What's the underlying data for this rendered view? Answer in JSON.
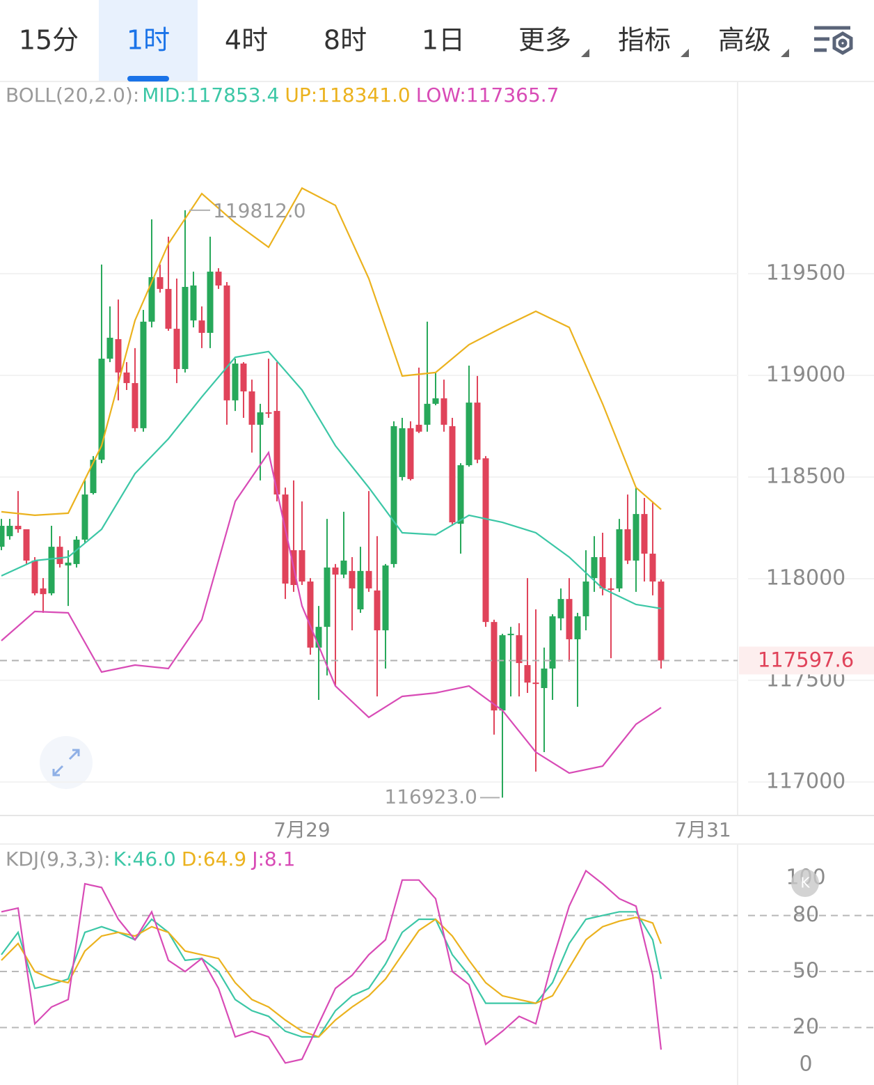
{
  "tabs": {
    "items": [
      "15分",
      "1时",
      "4时",
      "8时",
      "1日",
      "更多",
      "指标",
      "高级"
    ],
    "selected": 1
  },
  "badge": "K",
  "chart_data": [
    {
      "type": "candlestick",
      "indicator": "BOLL(20,2.0):",
      "up_color": "#27a85a",
      "down_color": "#e0435a",
      "open": [
        118157,
        118209,
        118260,
        118243,
        118089,
        117952,
        117928,
        118157,
        118065,
        118072,
        118192,
        118421,
        118585,
        119082,
        119178,
        119014,
        118962,
        118740,
        119264,
        119483,
        119425,
        119229,
        119031,
        119270,
        119270,
        119209,
        119510,
        119442,
        118877,
        119058,
        118921,
        118757,
        118818,
        118825,
        118414,
        118140,
        118140,
        117986,
        117661,
        117763,
        118055,
        118020,
        118038,
        117849,
        118038,
        117942,
        117746,
        118072,
        118500,
        118740,
        118757,
        118757,
        118860,
        118887,
        118750,
        118270,
        118558,
        118866,
        118592,
        117787,
        117352,
        117722,
        117722,
        117575,
        117489,
        117462,
        117558,
        117805,
        117900,
        117702,
        117815,
        118003,
        118106,
        117952,
        117952,
        118243,
        118089,
        118318,
        118123,
        117986
      ],
      "high": [
        118294,
        118294,
        118431,
        118243,
        118106,
        118003,
        118260,
        118209,
        118140,
        118209,
        118483,
        118603,
        119545,
        119339,
        119373,
        119065,
        119134,
        119322,
        119767,
        119545,
        119682,
        119476,
        119812,
        119510,
        119339,
        119682,
        119527,
        119459,
        119082,
        119065,
        118979,
        118860,
        119082,
        119065,
        118448,
        118483,
        118380,
        118003,
        117866,
        118294,
        118072,
        118329,
        118106,
        118157,
        118431,
        118209,
        118072,
        118774,
        118791,
        118774,
        119038,
        119264,
        119014,
        118979,
        118791,
        118568,
        119048,
        118997,
        118603,
        117798,
        117729,
        117763,
        117781,
        118003,
        117849,
        117661,
        117825,
        117952,
        118003,
        117832,
        118140,
        118209,
        118226,
        118003,
        118294,
        118414,
        118448,
        118397,
        118380,
        117996
      ],
      "low": [
        118140,
        118192,
        118226,
        118072,
        117918,
        117832,
        117918,
        118055,
        117866,
        118055,
        118175,
        118414,
        118568,
        119065,
        118877,
        118928,
        118723,
        118723,
        119236,
        119407,
        119219,
        118962,
        119014,
        119236,
        119134,
        119134,
        119425,
        118757,
        118825,
        118791,
        118620,
        118483,
        118791,
        118380,
        117900,
        117935,
        117969,
        117626,
        117404,
        117524,
        117472,
        118003,
        117746,
        117832,
        117935,
        117421,
        117558,
        118055,
        118483,
        118483,
        118716,
        118723,
        118853,
        118723,
        118260,
        118123,
        118551,
        118568,
        117763,
        117233,
        116923,
        117421,
        117421,
        117438,
        117051,
        117147,
        117404,
        117746,
        117592,
        117370,
        117746,
        117935,
        117918,
        117609,
        117935,
        118072,
        117935,
        117986,
        117918,
        117558
      ],
      "close": [
        118260,
        118260,
        118243,
        118089,
        117928,
        117924,
        118157,
        118072,
        118079,
        118192,
        118414,
        118585,
        119082,
        119185,
        119014,
        118962,
        118740,
        119264,
        119483,
        119425,
        119229,
        119031,
        119435,
        119442,
        119209,
        119510,
        119442,
        118877,
        119058,
        118921,
        118757,
        118818,
        118812,
        118414,
        117976,
        117969,
        117986,
        117661,
        117763,
        118055,
        118020,
        118089,
        117952,
        118038,
        117952,
        117746,
        118065,
        118750,
        118740,
        118490,
        118723,
        118860,
        118887,
        118757,
        118277,
        118558,
        118866,
        118585,
        117787,
        117352,
        117722,
        117729,
        117585,
        117489,
        117483,
        117558,
        117815,
        117900,
        117702,
        117815,
        117986,
        118106,
        117952,
        117945,
        118243,
        118089,
        118318,
        118123,
        117986,
        117597.6
      ],
      "series": [
        {
          "name": "MID:",
          "color": "#3cc7a6",
          "current": {
            "value": 117853.4,
            "label": "117853.4"
          },
          "x": [
            0,
            4,
            8,
            12,
            16,
            20,
            24,
            28,
            32,
            36,
            40,
            44,
            48,
            52,
            56,
            60,
            64,
            68,
            72,
            76,
            79
          ],
          "values": [
            118014,
            118089,
            118106,
            118243,
            118517,
            118688,
            118894,
            119089,
            119117,
            118928,
            118654,
            118448,
            118226,
            118216,
            118312,
            118277,
            118226,
            118106,
            117952,
            117873,
            117853.4
          ]
        },
        {
          "name": "UP:",
          "color": "#ebb21e",
          "current": {
            "value": 118341.0,
            "label": "118341.0"
          },
          "x": [
            0,
            4,
            8,
            12,
            16,
            20,
            24,
            28,
            32,
            36,
            40,
            44,
            48,
            52,
            56,
            60,
            64,
            68,
            72,
            76,
            79
          ],
          "values": [
            118329,
            118312,
            118322,
            118654,
            119270,
            119647,
            119894,
            119750,
            119630,
            119921,
            119836,
            119476,
            118997,
            119014,
            119151,
            119236,
            119315,
            119236,
            118860,
            118448,
            118341.0
          ]
        },
        {
          "name": "LOW:",
          "color": "#d84bb6",
          "current": {
            "value": 117365.7,
            "label": "117365.7"
          },
          "x": [
            0,
            4,
            8,
            12,
            16,
            20,
            24,
            28,
            32,
            36,
            40,
            44,
            48,
            52,
            56,
            60,
            64,
            68,
            72,
            76,
            79
          ],
          "values": [
            117695,
            117839,
            117832,
            117541,
            117575,
            117558,
            117798,
            118380,
            118620,
            117866,
            117472,
            117318,
            117421,
            117438,
            117472,
            117352,
            117147,
            117044,
            117078,
            117284,
            117365.7
          ]
        }
      ],
      "xlim": [
        -0.167,
        88.333
      ],
      "xticks": [
        {
          "value": 36,
          "label": "7月29"
        },
        {
          "value": 84,
          "label": "7月31"
        }
      ],
      "ylim": [
        116838.75,
        120441.85
      ],
      "yticks": [
        117000,
        117500,
        118000,
        118500,
        119000,
        119500
      ],
      "grid": true,
      "high_mark": {
        "x": 22,
        "value": 119812,
        "label": "119812.0"
      },
      "low_mark": {
        "x": 60,
        "value": 116923,
        "label": "116923.0"
      },
      "last_price": {
        "value": 117597.6,
        "label": "117597.6"
      }
    },
    {
      "type": "line",
      "indicator": "KDJ(9,3,3):",
      "series": [
        {
          "name": "K:",
          "color": "#3cc7a6",
          "current": {
            "value": 46.0,
            "label": "46.0"
          },
          "x": [
            0,
            2,
            4,
            6,
            8,
            10,
            12,
            14,
            16,
            18,
            20,
            22,
            24,
            26,
            28,
            30,
            32,
            34,
            36,
            38,
            40,
            42,
            44,
            46,
            48,
            50,
            52,
            54,
            56,
            58,
            60,
            62,
            64,
            66,
            68,
            70,
            72,
            74,
            76,
            78,
            79
          ],
          "values": [
            59,
            71,
            41,
            43,
            46,
            71,
            74,
            71,
            67,
            78,
            71,
            56,
            57,
            50,
            35,
            29,
            26,
            18,
            15,
            15,
            29,
            37,
            41,
            54,
            71,
            78,
            78,
            59,
            48,
            33,
            33,
            33,
            33,
            44,
            65,
            78,
            80,
            82,
            82,
            67,
            46.0
          ]
        },
        {
          "name": "D:",
          "color": "#ebb21e",
          "current": {
            "value": 64.9,
            "label": "64.9"
          },
          "x": [
            0,
            2,
            4,
            6,
            8,
            10,
            12,
            14,
            16,
            18,
            20,
            22,
            24,
            26,
            28,
            30,
            32,
            34,
            36,
            38,
            40,
            42,
            44,
            46,
            48,
            50,
            52,
            54,
            56,
            58,
            60,
            62,
            64,
            66,
            68,
            70,
            72,
            74,
            76,
            78,
            79
          ],
          "values": [
            56,
            65,
            50,
            46,
            44,
            61,
            69,
            71,
            69,
            74,
            71,
            61,
            59,
            57,
            44,
            35,
            31,
            24,
            18,
            15,
            24,
            31,
            37,
            46,
            59,
            72,
            78,
            69,
            56,
            44,
            37,
            35,
            33,
            37,
            52,
            67,
            74,
            77,
            79,
            76,
            64.9
          ]
        },
        {
          "name": "J:",
          "color": "#d84bb6",
          "current": {
            "value": 8.1,
            "label": "8.1"
          },
          "x": [
            0,
            2,
            4,
            6,
            8,
            10,
            12,
            14,
            16,
            18,
            20,
            22,
            24,
            26,
            28,
            30,
            32,
            34,
            36,
            38,
            40,
            42,
            44,
            46,
            48,
            50,
            52,
            54,
            56,
            58,
            60,
            62,
            64,
            66,
            68,
            70,
            72,
            74,
            76,
            78,
            79
          ],
          "values": [
            82,
            84,
            22,
            31,
            35,
            97,
            95,
            78,
            67,
            82,
            56,
            50,
            57,
            41,
            15,
            18,
            15,
            1,
            3,
            22,
            41,
            48,
            59,
            67,
            99,
            99,
            89,
            50,
            43,
            11,
            18,
            26,
            22,
            56,
            85,
            104,
            97,
            89,
            85,
            48,
            8.1
          ]
        }
      ],
      "xlim": [
        -0.167,
        88.333
      ],
      "ylim": [
        -10.8,
        118.3
      ],
      "yticks": [
        0,
        20,
        50,
        80,
        100
      ],
      "hlines": [
        20,
        50,
        80
      ]
    }
  ]
}
